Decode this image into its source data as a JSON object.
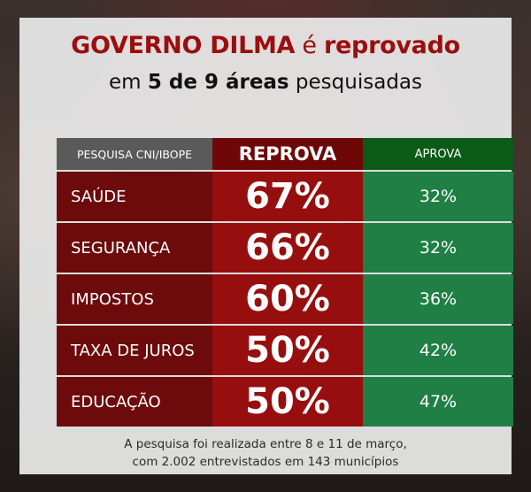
{
  "title": {
    "part1": "GOVERNO DILMA",
    "part2": " é ",
    "part3": "reprovado"
  },
  "subtitle": {
    "part1": "em ",
    "part2": "5 de 9 áreas",
    "part3": " pesquisadas"
  },
  "table": {
    "header_source": "PESQUISA CNI/IBOPE",
    "header_reprova": "REPROVA",
    "header_aprova": "APROVA",
    "rows": [
      {
        "area": "SAÚDE",
        "reprova": "67%",
        "aprova": "32%"
      },
      {
        "area": "SEGURANÇA",
        "reprova": "66%",
        "aprova": "32%"
      },
      {
        "area": "IMPOSTOS",
        "reprova": "60%",
        "aprova": "36%"
      },
      {
        "area": "TAXA DE JUROS",
        "reprova": "50%",
        "aprova": "42%"
      },
      {
        "area": "EDUCAÇÃO",
        "reprova": "50%",
        "aprova": "47%"
      }
    ]
  },
  "note": {
    "line1": "A pesquisa foi realizada entre 8 e 11 de março,",
    "line2": "com 2.002 entrevistados em 143 municípios"
  },
  "colors": {
    "reprova": "#970e0e",
    "aprova": "#1f7f45",
    "title": "#9b0e0e"
  }
}
